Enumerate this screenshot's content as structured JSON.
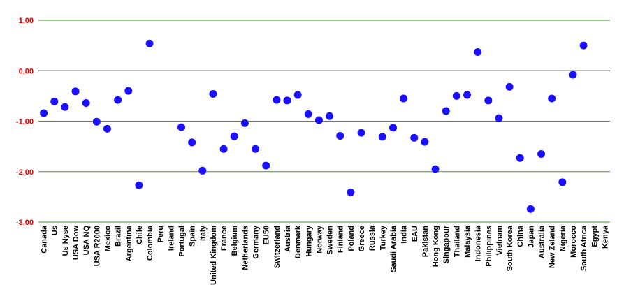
{
  "chart_data": {
    "type": "scatter",
    "categories": [
      "Canada",
      "Us",
      "Us Nyse",
      "USA Dow",
      "USA NQ",
      "USA R2000",
      "Mexico",
      "Brazil",
      "Argentina",
      "Chile",
      "Colombia",
      "Peru",
      "Ireland",
      "Portugal",
      "Spain",
      "Italy",
      "United Kingdom",
      "France",
      "Belgium",
      "Netherlands",
      "Germany",
      "EU50",
      "Switzerland",
      "Austria",
      "Denmark",
      "Hungary",
      "Norway",
      "Sweden",
      "Finland",
      "Poland",
      "Greece",
      "Russia",
      "Turkey",
      "Saudi Arabia",
      "India",
      "EAU",
      "Pakistan",
      "Hong Kong",
      "Singapour",
      "Thailand",
      "Malaysia",
      "Indonesia",
      "Philippines",
      "Vietnam",
      "South Korea",
      "China",
      "Japan",
      "Australia",
      "New Zeland",
      "Nigeria",
      "Morocco",
      "South Africa",
      "Egypt",
      "Kenya"
    ],
    "values": [
      -0.84,
      -0.61,
      -0.72,
      -0.41,
      -0.64,
      -1.01,
      -1.15,
      -0.58,
      -0.4,
      -2.27,
      0.54,
      null,
      null,
      -1.12,
      -1.42,
      -1.98,
      -0.46,
      -1.55,
      -1.3,
      -1.04,
      -1.55,
      -1.88,
      -0.58,
      -0.59,
      -0.48,
      -0.86,
      -0.98,
      -0.9,
      -1.29,
      -2.41,
      -1.23,
      null,
      -1.31,
      -1.13,
      -0.55,
      -1.33,
      -1.41,
      -1.95,
      -0.8,
      -0.5,
      -0.48,
      0.37,
      -0.59,
      -0.94,
      -0.32,
      -1.73,
      -2.74,
      -1.65,
      -0.55,
      -2.21,
      -0.08,
      0.5,
      null,
      null
    ],
    "color": "#1a10ff",
    "ylim": [
      -3,
      1
    ],
    "yticks": [
      {
        "value": -3,
        "label": "-3,00"
      },
      {
        "value": -2,
        "label": "-2,00"
      },
      {
        "value": -1,
        "label": "-1,00"
      },
      {
        "value": 0,
        "label": "0,00"
      },
      {
        "value": 1,
        "label": "1,00"
      }
    ],
    "grid": true
  }
}
